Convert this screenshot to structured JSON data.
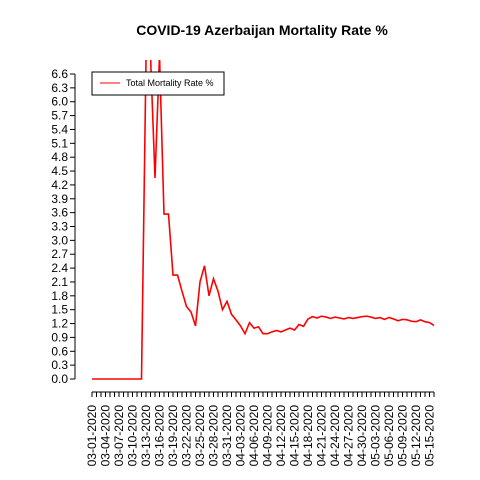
{
  "chart_data": {
    "type": "line",
    "title": "COVID-19 Azerbaijan Mortality Rate %",
    "categories": [
      "03-01-2020",
      null,
      null,
      "03-04-2020",
      null,
      null,
      "03-07-2020",
      null,
      null,
      "03-10-2020",
      null,
      null,
      "03-13-2020",
      null,
      null,
      "03-16-2020",
      null,
      null,
      "03-19-2020",
      null,
      null,
      "03-22-2020",
      null,
      null,
      "03-25-2020",
      null,
      null,
      "03-28-2020",
      null,
      null,
      "03-31-2020",
      null,
      null,
      "04-03-2020",
      null,
      null,
      "04-06-2020",
      null,
      null,
      "04-09-2020",
      null,
      null,
      "04-12-2020",
      null,
      null,
      "04-15-2020",
      null,
      null,
      "04-18-2020",
      null,
      null,
      "04-21-2020",
      null,
      null,
      "04-24-2020",
      null,
      null,
      "04-27-2020",
      null,
      null,
      "04-30-2020",
      null,
      null,
      "05-03-2020",
      null,
      null,
      "05-06-2020",
      null,
      null,
      "05-09-2020",
      null,
      null,
      "05-12-2020",
      null,
      null,
      "05-15-2020",
      null
    ],
    "series": [
      {
        "name": "Total Mortality Rate %",
        "color": "#ff0000",
        "values": [
          0,
          0,
          0,
          0,
          0,
          0,
          0,
          0,
          0,
          0,
          0,
          0,
          6.9,
          7.0,
          4.35,
          7.0,
          3.57,
          3.57,
          2.25,
          2.25,
          1.9,
          1.57,
          1.45,
          1.15,
          2.1,
          2.45,
          1.8,
          2.17,
          1.9,
          1.5,
          1.68,
          1.4,
          1.28,
          1.15,
          0.98,
          1.22,
          1.1,
          1.13,
          0.98,
          0.98,
          1.02,
          1.05,
          1.02,
          1.06,
          1.1,
          1.06,
          1.18,
          1.14,
          1.3,
          1.35,
          1.32,
          1.36,
          1.34,
          1.31,
          1.34,
          1.32,
          1.3,
          1.33,
          1.31,
          1.33,
          1.35,
          1.36,
          1.34,
          1.31,
          1.33,
          1.29,
          1.33,
          1.3,
          1.26,
          1.29,
          1.28,
          1.25,
          1.24,
          1.28,
          1.24,
          1.22,
          1.16
        ]
      }
    ],
    "ylim": [
      0,
      6.6
    ],
    "yticks": [
      {
        "value": 0,
        "label": "0.0"
      },
      {
        "value": 0.3,
        "label": "0.3"
      },
      {
        "value": 0.6,
        "label": "0.6"
      },
      {
        "value": 0.9,
        "label": "0.9"
      },
      {
        "value": 1.2,
        "label": "1.2"
      },
      {
        "value": 1.5,
        "label": "1.5"
      },
      {
        "value": 1.8,
        "label": "1.8"
      },
      {
        "value": 2.1,
        "label": "2.1"
      },
      {
        "value": 2.4,
        "label": "2.4"
      },
      {
        "value": 2.7,
        "label": "2.7"
      },
      {
        "value": 3.0,
        "label": "3.0"
      },
      {
        "value": 3.3,
        "label": "3.3"
      },
      {
        "value": 3.6,
        "label": "3.6"
      },
      {
        "value": 3.9,
        "label": "3.9"
      },
      {
        "value": 4.2,
        "label": "4.2"
      },
      {
        "value": 4.5,
        "label": "4.5"
      },
      {
        "value": 4.8,
        "label": "4.8"
      },
      {
        "value": 5.1,
        "label": "5.1"
      },
      {
        "value": 5.4,
        "label": "5.4"
      },
      {
        "value": 5.7,
        "label": "5.7"
      },
      {
        "value": 6.0,
        "label": "6.0"
      },
      {
        "value": 6.3,
        "label": "6.3"
      },
      {
        "value": 6.6,
        "label": "6.6"
      }
    ],
    "legend": "topleft"
  }
}
